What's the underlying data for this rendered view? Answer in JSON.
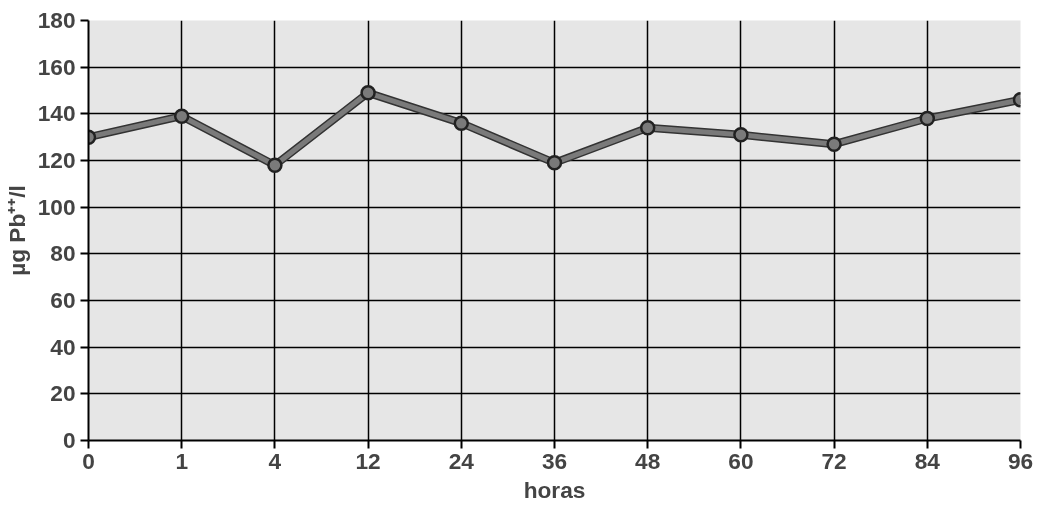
{
  "chart_data": {
    "type": "line",
    "xlabel": "horas",
    "ylabel": "µg Pb⁺⁺/l",
    "categories": [
      "0",
      "1",
      "4",
      "12",
      "24",
      "36",
      "48",
      "60",
      "72",
      "84",
      "96"
    ],
    "series": [
      {
        "color": "#7a7a7a",
        "values": [
          130,
          139,
          118,
          149,
          136,
          119,
          134,
          131,
          127,
          138,
          146
        ]
      }
    ],
    "ylim": [
      0,
      180
    ],
    "yticks": [
      0,
      20,
      40,
      60,
      80,
      100,
      120,
      140,
      160,
      180
    ],
    "grid": true,
    "marker": "circle",
    "line_style": "solid"
  }
}
